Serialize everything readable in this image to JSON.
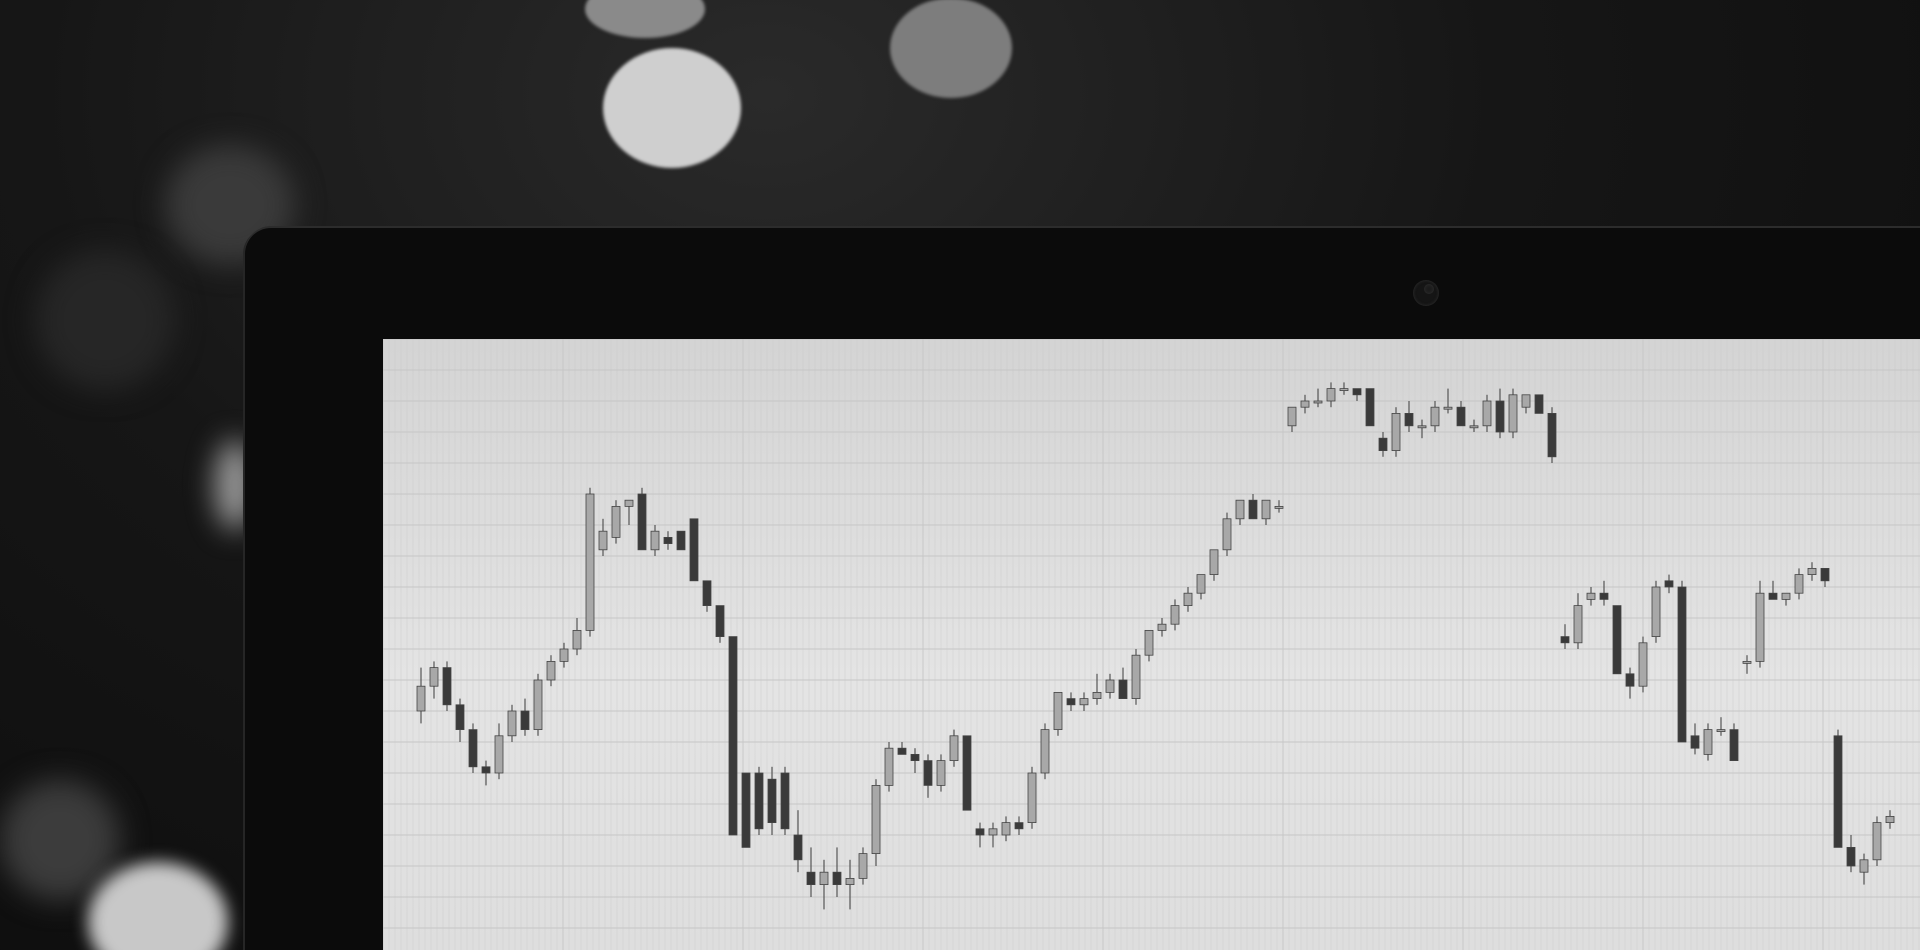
{
  "scene": {
    "description_tag": "laptop-screen-candlestick",
    "colors": {
      "background": "#111111",
      "bezel": "#0b0b0b",
      "screen": "#e0e0e0",
      "grid": "#c6c6c6",
      "candle_up": "#a8a8a8",
      "candle_down": "#3a3a3a",
      "wick": "#555555"
    }
  },
  "chart_data": {
    "type": "candlestick",
    "title": "",
    "xlabel": "",
    "ylabel": "",
    "grid": true,
    "ylim": [
      0,
      100
    ],
    "candles": [
      {
        "o": 40,
        "h": 47,
        "l": 38,
        "c": 44
      },
      {
        "o": 44,
        "h": 48,
        "l": 42,
        "c": 47
      },
      {
        "o": 47,
        "h": 48,
        "l": 40,
        "c": 41
      },
      {
        "o": 41,
        "h": 42,
        "l": 35,
        "c": 37
      },
      {
        "o": 37,
        "h": 38,
        "l": 30,
        "c": 31
      },
      {
        "o": 31,
        "h": 32,
        "l": 28,
        "c": 30
      },
      {
        "o": 30,
        "h": 38,
        "l": 29,
        "c": 36
      },
      {
        "o": 36,
        "h": 41,
        "l": 35,
        "c": 40
      },
      {
        "o": 40,
        "h": 42,
        "l": 36,
        "c": 37
      },
      {
        "o": 37,
        "h": 46,
        "l": 36,
        "c": 45
      },
      {
        "o": 45,
        "h": 49,
        "l": 44,
        "c": 48
      },
      {
        "o": 48,
        "h": 51,
        "l": 47,
        "c": 50
      },
      {
        "o": 50,
        "h": 55,
        "l": 49,
        "c": 53
      },
      {
        "o": 53,
        "h": 76,
        "l": 52,
        "c": 75
      },
      {
        "o": 66,
        "h": 71,
        "l": 65,
        "c": 69
      },
      {
        "o": 68,
        "h": 74,
        "l": 67,
        "c": 73
      },
      {
        "o": 73,
        "h": 74,
        "l": 70,
        "c": 74
      },
      {
        "o": 75,
        "h": 76,
        "l": 66,
        "c": 66
      },
      {
        "o": 66,
        "h": 70,
        "l": 65,
        "c": 69
      },
      {
        "o": 68,
        "h": 69,
        "l": 66,
        "c": 67
      },
      {
        "o": 69,
        "h": 69,
        "l": 66,
        "c": 66
      },
      {
        "o": 71,
        "h": 71,
        "l": 61,
        "c": 61
      },
      {
        "o": 61,
        "h": 61,
        "l": 56,
        "c": 57
      },
      {
        "o": 57,
        "h": 57,
        "l": 51,
        "c": 52
      },
      {
        "o": 52,
        "h": 52,
        "l": 20,
        "c": 20
      },
      {
        "o": 30,
        "h": 30,
        "l": 18,
        "c": 18
      },
      {
        "o": 30,
        "h": 31,
        "l": 20,
        "c": 21
      },
      {
        "o": 29,
        "h": 31,
        "l": 20,
        "c": 22
      },
      {
        "o": 30,
        "h": 31,
        "l": 20,
        "c": 21
      },
      {
        "o": 20,
        "h": 24,
        "l": 14,
        "c": 16
      },
      {
        "o": 14,
        "h": 18,
        "l": 10,
        "c": 12
      },
      {
        "o": 12,
        "h": 16,
        "l": 8,
        "c": 14
      },
      {
        "o": 14,
        "h": 18,
        "l": 10,
        "c": 12
      },
      {
        "o": 12,
        "h": 16,
        "l": 8,
        "c": 13
      },
      {
        "o": 13,
        "h": 18,
        "l": 12,
        "c": 17
      },
      {
        "o": 17,
        "h": 29,
        "l": 15,
        "c": 28
      },
      {
        "o": 28,
        "h": 35,
        "l": 27,
        "c": 34
      },
      {
        "o": 34,
        "h": 35,
        "l": 33,
        "c": 33
      },
      {
        "o": 33,
        "h": 34,
        "l": 30,
        "c": 32
      },
      {
        "o": 32,
        "h": 33,
        "l": 26,
        "c": 28
      },
      {
        "o": 28,
        "h": 33,
        "l": 27,
        "c": 32
      },
      {
        "o": 32,
        "h": 37,
        "l": 31,
        "c": 36
      },
      {
        "o": 36,
        "h": 36,
        "l": 24,
        "c": 24
      },
      {
        "o": 21,
        "h": 22,
        "l": 18,
        "c": 20
      },
      {
        "o": 20,
        "h": 22,
        "l": 18,
        "c": 21
      },
      {
        "o": 20,
        "h": 23,
        "l": 19,
        "c": 22
      },
      {
        "o": 22,
        "h": 23,
        "l": 20,
        "c": 21
      },
      {
        "o": 22,
        "h": 31,
        "l": 21,
        "c": 30
      },
      {
        "o": 30,
        "h": 38,
        "l": 29,
        "c": 37
      },
      {
        "o": 37,
        "h": 43,
        "l": 36,
        "c": 43
      },
      {
        "o": 42,
        "h": 43,
        "l": 40,
        "c": 41
      },
      {
        "o": 41,
        "h": 43,
        "l": 40,
        "c": 42
      },
      {
        "o": 42,
        "h": 46,
        "l": 41,
        "c": 43
      },
      {
        "o": 43,
        "h": 46,
        "l": 42,
        "c": 45
      },
      {
        "o": 45,
        "h": 47,
        "l": 42,
        "c": 42
      },
      {
        "o": 42,
        "h": 50,
        "l": 41,
        "c": 49
      },
      {
        "o": 49,
        "h": 53,
        "l": 48,
        "c": 53
      },
      {
        "o": 53,
        "h": 55,
        "l": 52,
        "c": 54
      },
      {
        "o": 54,
        "h": 58,
        "l": 53,
        "c": 57
      },
      {
        "o": 57,
        "h": 60,
        "l": 56,
        "c": 59
      },
      {
        "o": 59,
        "h": 62,
        "l": 58,
        "c": 62
      },
      {
        "o": 62,
        "h": 66,
        "l": 61,
        "c": 66
      },
      {
        "o": 66,
        "h": 72,
        "l": 65,
        "c": 71
      },
      {
        "o": 71,
        "h": 74,
        "l": 70,
        "c": 74
      },
      {
        "o": 74,
        "h": 75,
        "l": 71,
        "c": 71
      },
      {
        "o": 71,
        "h": 74,
        "l": 70,
        "c": 74
      },
      {
        "o": 73,
        "h": 74,
        "l": 72,
        "c": 73
      },
      {
        "o": 86,
        "h": 89,
        "l": 85,
        "c": 89
      },
      {
        "o": 89,
        "h": 91,
        "l": 88,
        "c": 90
      },
      {
        "o": 90,
        "h": 92,
        "l": 89,
        "c": 90
      },
      {
        "o": 90,
        "h": 93,
        "l": 89,
        "c": 92
      },
      {
        "o": 92,
        "h": 93,
        "l": 91,
        "c": 92
      },
      {
        "o": 92,
        "h": 92,
        "l": 90,
        "c": 91
      },
      {
        "o": 92,
        "h": 92,
        "l": 86,
        "c": 86
      },
      {
        "o": 84,
        "h": 85,
        "l": 81,
        "c": 82
      },
      {
        "o": 82,
        "h": 89,
        "l": 81,
        "c": 88
      },
      {
        "o": 88,
        "h": 90,
        "l": 85,
        "c": 86
      },
      {
        "o": 86,
        "h": 87,
        "l": 84,
        "c": 86
      },
      {
        "o": 86,
        "h": 90,
        "l": 85,
        "c": 89
      },
      {
        "o": 89,
        "h": 92,
        "l": 88,
        "c": 89
      },
      {
        "o": 89,
        "h": 90,
        "l": 86,
        "c": 86
      },
      {
        "o": 86,
        "h": 87,
        "l": 85,
        "c": 86
      },
      {
        "o": 86,
        "h": 91,
        "l": 85,
        "c": 90
      },
      {
        "o": 90,
        "h": 92,
        "l": 84,
        "c": 85
      },
      {
        "o": 85,
        "h": 92,
        "l": 84,
        "c": 91
      },
      {
        "o": 89,
        "h": 91,
        "l": 88,
        "c": 91
      },
      {
        "o": 91,
        "h": 91,
        "l": 88,
        "c": 88
      },
      {
        "o": 88,
        "h": 89,
        "l": 80,
        "c": 81
      },
      {
        "o": 52,
        "h": 54,
        "l": 50,
        "c": 51
      },
      {
        "o": 51,
        "h": 59,
        "l": 50,
        "c": 57
      },
      {
        "o": 58,
        "h": 60,
        "l": 57,
        "c": 59
      },
      {
        "o": 59,
        "h": 61,
        "l": 57,
        "c": 58
      },
      {
        "o": 57,
        "h": 57,
        "l": 46,
        "c": 46
      },
      {
        "o": 46,
        "h": 47,
        "l": 42,
        "c": 44
      },
      {
        "o": 44,
        "h": 52,
        "l": 43,
        "c": 51
      },
      {
        "o": 52,
        "h": 61,
        "l": 51,
        "c": 60
      },
      {
        "o": 61,
        "h": 62,
        "l": 59,
        "c": 60
      },
      {
        "o": 60,
        "h": 61,
        "l": 35,
        "c": 35
      },
      {
        "o": 36,
        "h": 38,
        "l": 33,
        "c": 34
      },
      {
        "o": 33,
        "h": 38,
        "l": 32,
        "c": 37
      },
      {
        "o": 37,
        "h": 39,
        "l": 36,
        "c": 37
      },
      {
        "o": 37,
        "h": 38,
        "l": 32,
        "c": 32
      },
      {
        "o": 48,
        "h": 49,
        "l": 46,
        "c": 48
      },
      {
        "o": 48,
        "h": 61,
        "l": 47,
        "c": 59
      },
      {
        "o": 59,
        "h": 61,
        "l": 58,
        "c": 58
      },
      {
        "o": 58,
        "h": 59,
        "l": 57,
        "c": 59
      },
      {
        "o": 59,
        "h": 63,
        "l": 58,
        "c": 62
      },
      {
        "o": 62,
        "h": 64,
        "l": 61,
        "c": 63
      },
      {
        "o": 63,
        "h": 63,
        "l": 60,
        "c": 61
      },
      {
        "o": 36,
        "h": 37,
        "l": 18,
        "c": 18
      },
      {
        "o": 18,
        "h": 20,
        "l": 14,
        "c": 15
      },
      {
        "o": 14,
        "h": 17,
        "l": 12,
        "c": 16
      },
      {
        "o": 16,
        "h": 23,
        "l": 15,
        "c": 22
      },
      {
        "o": 22,
        "h": 24,
        "l": 21,
        "c": 23
      }
    ]
  }
}
